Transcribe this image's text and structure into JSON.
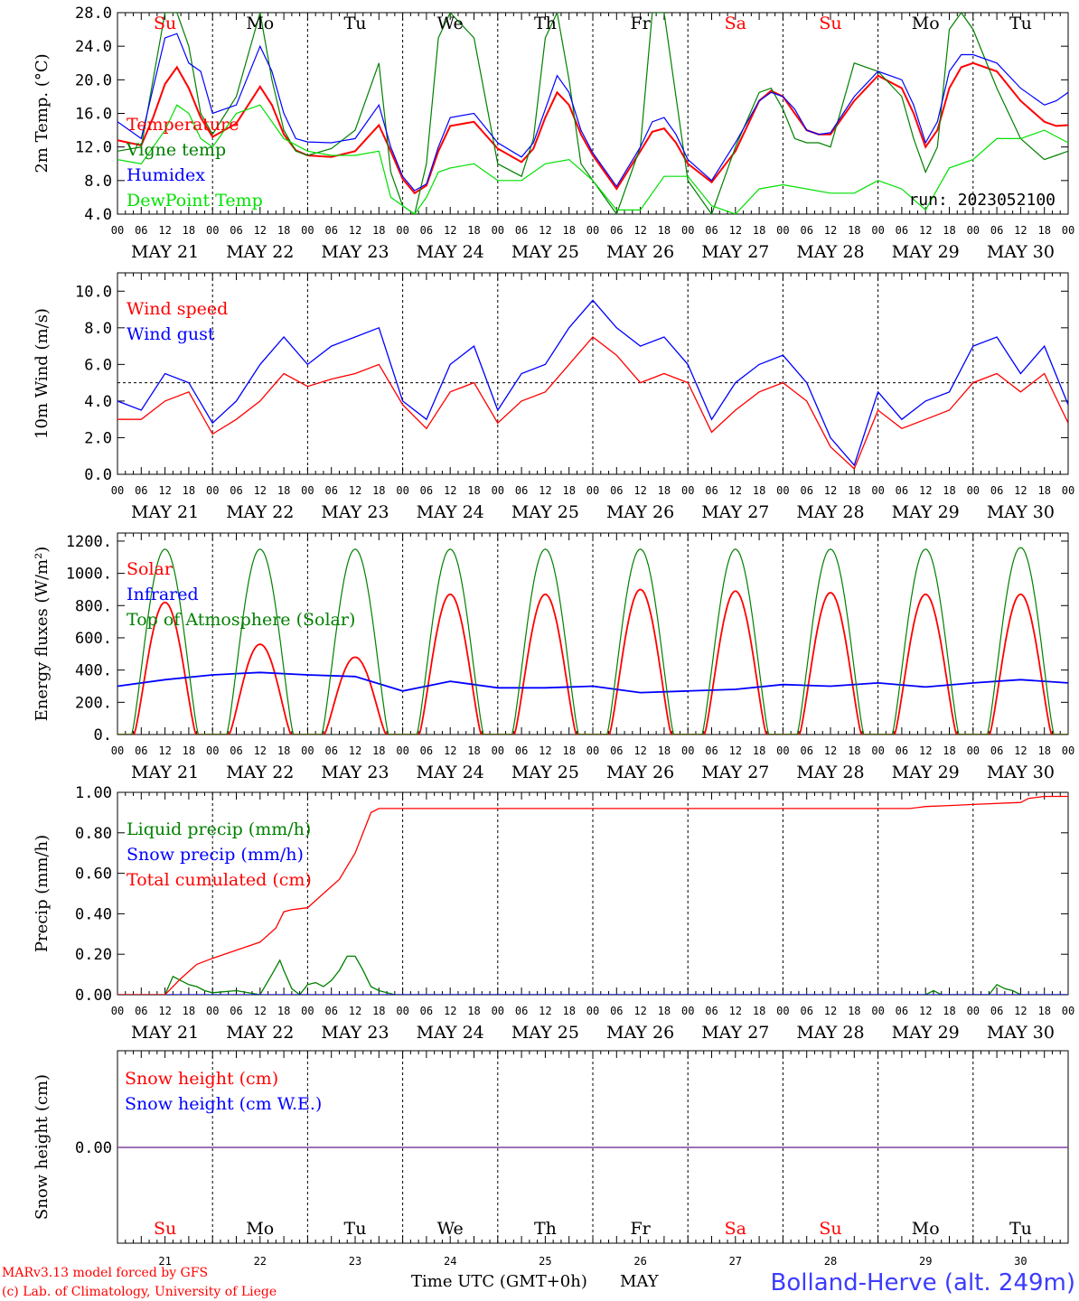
{
  "footer": {
    "credit_line1": "MARv3.13 model forced by GFS",
    "credit_line2": "(c) Lab. of Climatology, University of Liege",
    "time_axis_label": "Time UTC (GMT+0h)",
    "month_label": "MAY",
    "station": "Bolland-Herve (alt. 249m)"
  },
  "colors": {
    "red": "#ff0000",
    "green": "#008000",
    "blue": "#0000ff",
    "lightgreen": "#00e000",
    "purple": "#8040a0"
  },
  "days": [
    {
      "dow": "Su",
      "date": "MAY 21",
      "num": "21",
      "weekend": true
    },
    {
      "dow": "Mo",
      "date": "MAY 22",
      "num": "22",
      "weekend": false
    },
    {
      "dow": "Tu",
      "date": "MAY 23",
      "num": "23",
      "weekend": false
    },
    {
      "dow": "We",
      "date": "MAY 24",
      "num": "24",
      "weekend": false
    },
    {
      "dow": "Th",
      "date": "MAY 25",
      "num": "25",
      "weekend": false
    },
    {
      "dow": "Fr",
      "date": "MAY 26",
      "num": "26",
      "weekend": false
    },
    {
      "dow": "Sa",
      "date": "MAY 27",
      "num": "27",
      "weekend": true
    },
    {
      "dow": "Su",
      "date": "MAY 28",
      "num": "28",
      "weekend": true
    },
    {
      "dow": "Mo",
      "date": "MAY 29",
      "num": "29",
      "weekend": false
    },
    {
      "dow": "Tu",
      "date": "MAY 30",
      "num": "30",
      "weekend": false
    }
  ],
  "hour_ticks": [
    "00",
    "06",
    "12",
    "18"
  ],
  "chart_data": [
    {
      "id": "temp",
      "type": "line",
      "ylabel": "2m Temp. (°C)",
      "ylim": [
        4,
        28
      ],
      "yticks": [
        "4.0",
        "8.0",
        "12.0",
        "16.0",
        "20.0",
        "24.0",
        "28.0"
      ],
      "annotation": "run: 2023052100",
      "series": [
        {
          "name": "Temperature",
          "color": "red",
          "x": [
            0,
            6,
            9,
            12,
            15,
            18,
            21,
            24,
            30,
            36,
            39,
            42,
            45,
            48,
            54,
            60,
            66,
            69,
            72,
            75,
            78,
            81,
            84,
            90,
            96,
            102,
            105,
            108,
            111,
            114,
            117,
            120,
            126,
            132,
            135,
            138,
            141,
            144,
            150,
            156,
            162,
            165,
            168,
            171,
            174,
            177,
            180,
            186,
            192,
            198,
            201,
            204,
            207,
            210,
            213,
            216,
            222,
            228,
            234,
            237,
            240
          ],
          "y": [
            12.8,
            12.2,
            15.5,
            19.5,
            21.5,
            19.0,
            15.5,
            13.2,
            14.8,
            19.2,
            17.0,
            13.5,
            11.6,
            11.0,
            10.8,
            11.5,
            14.6,
            11.5,
            8.2,
            6.5,
            7.4,
            11.5,
            14.5,
            15.0,
            11.8,
            10.2,
            11.8,
            15.5,
            18.5,
            17.0,
            13.5,
            11.0,
            7.0,
            11.5,
            13.8,
            14.2,
            12.5,
            10.0,
            7.8,
            11.5,
            17.5,
            18.7,
            18.0,
            16.0,
            14.0,
            13.5,
            13.5,
            17.5,
            20.5,
            19.0,
            16.0,
            12.0,
            14.0,
            19.0,
            21.5,
            22.0,
            21.0,
            17.5,
            15.0,
            14.5,
            14.6
          ]
        },
        {
          "name": "Vigne temp",
          "color": "green",
          "x": [
            0,
            6,
            9,
            12,
            15,
            18,
            21,
            24,
            30,
            36,
            39,
            42,
            45,
            48,
            54,
            60,
            66,
            69,
            72,
            75,
            78,
            81,
            84,
            90,
            96,
            102,
            105,
            108,
            111,
            114,
            117,
            120,
            126,
            132,
            135,
            138,
            141,
            144,
            150,
            156,
            162,
            165,
            168,
            171,
            174,
            177,
            180,
            186,
            192,
            198,
            201,
            204,
            207,
            210,
            213,
            216,
            222,
            228,
            234,
            237,
            240
          ],
          "y": [
            11.5,
            12.0,
            20.0,
            28.0,
            28.0,
            24.0,
            16.0,
            13.5,
            18.0,
            28.0,
            20.0,
            14.0,
            11.5,
            11.0,
            11.8,
            14.0,
            22.0,
            9.0,
            5.0,
            4.0,
            10.0,
            25.0,
            28.0,
            25.0,
            10.0,
            8.5,
            13.0,
            25.0,
            28.0,
            20.0,
            10.0,
            8.0,
            4.0,
            12.0,
            28.0,
            28.0,
            18.0,
            8.0,
            4.0,
            12.0,
            18.5,
            19.0,
            16.5,
            13.0,
            12.5,
            12.5,
            12.0,
            22.0,
            21.0,
            18.0,
            13.0,
            9.0,
            12.0,
            26.0,
            28.0,
            26.0,
            19.0,
            13.0,
            10.5,
            11.0,
            11.5
          ]
        },
        {
          "name": "Humidex",
          "color": "blue",
          "x": [
            0,
            6,
            9,
            12,
            15,
            18,
            21,
            24,
            30,
            36,
            39,
            42,
            45,
            48,
            54,
            60,
            66,
            69,
            72,
            75,
            78,
            81,
            84,
            90,
            96,
            102,
            105,
            108,
            111,
            114,
            117,
            120,
            126,
            132,
            135,
            138,
            141,
            144,
            150,
            156,
            162,
            165,
            168,
            171,
            174,
            177,
            180,
            186,
            192,
            198,
            201,
            204,
            207,
            210,
            213,
            216,
            222,
            228,
            234,
            237,
            240
          ],
          "y": [
            15.0,
            13.0,
            19.0,
            25.0,
            25.5,
            22.0,
            21.0,
            16.0,
            17.0,
            24.0,
            21.0,
            16.0,
            13.0,
            12.6,
            12.5,
            13.0,
            17.0,
            12.0,
            8.5,
            6.8,
            7.6,
            12.0,
            15.5,
            16.0,
            12.5,
            10.8,
            12.5,
            16.5,
            20.5,
            18.5,
            14.0,
            11.3,
            7.3,
            12.0,
            15.0,
            15.5,
            13.5,
            10.5,
            8.0,
            12.5,
            17.5,
            18.5,
            18.0,
            16.5,
            14.0,
            13.5,
            13.7,
            18.0,
            21.0,
            20.0,
            17.0,
            12.5,
            15.0,
            21.0,
            23.0,
            23.0,
            22.0,
            19.0,
            17.0,
            17.5,
            18.5
          ]
        },
        {
          "name": "DewPoint Temp",
          "color": "lightgreen",
          "x": [
            0,
            6,
            12,
            15,
            18,
            21,
            24,
            30,
            36,
            42,
            48,
            54,
            60,
            66,
            69,
            72,
            75,
            78,
            81,
            84,
            90,
            96,
            102,
            108,
            114,
            120,
            126,
            132,
            138,
            144,
            150,
            156,
            162,
            168,
            174,
            180,
            186,
            192,
            198,
            204,
            210,
            216,
            222,
            228,
            234,
            240
          ],
          "y": [
            10.5,
            10.0,
            14.0,
            17.0,
            16.0,
            13.0,
            12.0,
            16.0,
            17.0,
            13.0,
            11.5,
            11.0,
            11.0,
            11.5,
            6.0,
            5.0,
            4.0,
            6.0,
            9.0,
            9.5,
            10.0,
            8.0,
            8.0,
            10.0,
            10.5,
            8.0,
            4.5,
            4.5,
            8.5,
            8.5,
            5.0,
            4.0,
            7.0,
            7.5,
            7.0,
            6.5,
            6.5,
            8.0,
            7.0,
            4.5,
            9.5,
            10.5,
            13.0,
            13.0,
            14.0,
            12.5
          ]
        }
      ]
    },
    {
      "id": "wind",
      "type": "line",
      "ylabel": "10m Wind (m/s)",
      "ylim": [
        0,
        11
      ],
      "yticks": [
        "0.0",
        "2.0",
        "4.0",
        "6.0",
        "8.0",
        "10.0"
      ],
      "reference_line": 5,
      "series": [
        {
          "name": "Wind speed",
          "color": "red",
          "x": [
            0,
            6,
            12,
            18,
            24,
            30,
            36,
            42,
            48,
            54,
            60,
            66,
            72,
            78,
            84,
            90,
            96,
            102,
            108,
            114,
            120,
            126,
            132,
            138,
            144,
            150,
            156,
            162,
            168,
            174,
            180,
            186,
            192,
            198,
            204,
            210,
            216,
            222,
            228,
            234,
            240
          ],
          "y": [
            3.0,
            3.0,
            4.0,
            4.5,
            2.2,
            3.0,
            4.0,
            5.5,
            4.8,
            5.2,
            5.5,
            6.0,
            3.8,
            2.5,
            4.5,
            5.0,
            2.8,
            4.0,
            4.5,
            6.0,
            7.5,
            6.5,
            5.0,
            5.5,
            5.0,
            2.3,
            3.5,
            4.5,
            5.0,
            4.0,
            1.5,
            0.3,
            3.5,
            2.5,
            3.0,
            3.5,
            5.0,
            5.5,
            4.5,
            5.5,
            2.8
          ]
        },
        {
          "name": "Wind gust",
          "color": "blue",
          "x": [
            0,
            6,
            12,
            18,
            24,
            30,
            36,
            42,
            48,
            54,
            60,
            66,
            72,
            78,
            84,
            90,
            96,
            102,
            108,
            114,
            120,
            126,
            132,
            138,
            144,
            150,
            156,
            162,
            168,
            174,
            180,
            186,
            192,
            198,
            204,
            210,
            216,
            222,
            228,
            234,
            240
          ],
          "y": [
            4.0,
            3.5,
            5.5,
            5.0,
            2.8,
            4.0,
            6.0,
            7.5,
            6.0,
            7.0,
            7.5,
            8.0,
            4.0,
            3.0,
            6.0,
            7.0,
            3.5,
            5.5,
            6.0,
            8.0,
            9.5,
            8.0,
            7.0,
            7.5,
            6.0,
            3.0,
            5.0,
            6.0,
            6.5,
            5.0,
            2.0,
            0.5,
            4.5,
            3.0,
            4.0,
            4.5,
            7.0,
            7.5,
            5.5,
            7.0,
            3.8
          ]
        }
      ]
    },
    {
      "id": "energy",
      "type": "line",
      "ylabel": "Energy fluxes (W/m²)",
      "ylim": [
        0,
        1250
      ],
      "yticks": [
        "0.",
        "200.",
        "400.",
        "600.",
        "800.",
        "1000.",
        "1200."
      ],
      "series": [
        {
          "name": "Solar",
          "color": "red",
          "daily_peak": [
            820,
            560,
            480,
            870,
            870,
            900,
            890,
            880,
            870,
            870
          ]
        },
        {
          "name": "Infrared",
          "color": "blue",
          "x": [
            0,
            12,
            24,
            36,
            48,
            60,
            72,
            84,
            96,
            108,
            120,
            132,
            144,
            156,
            168,
            180,
            192,
            204,
            216,
            228,
            240
          ],
          "y": [
            300,
            340,
            370,
            385,
            370,
            360,
            270,
            330,
            290,
            290,
            300,
            260,
            270,
            280,
            310,
            300,
            320,
            295,
            320,
            340,
            320
          ]
        },
        {
          "name": "Top of Atmosphere (Solar)",
          "color": "green",
          "daily_peak": [
            1150,
            1150,
            1150,
            1150,
            1150,
            1150,
            1150,
            1150,
            1150,
            1160
          ]
        }
      ]
    },
    {
      "id": "precip",
      "type": "line",
      "ylabel": "Precip (mm/h)",
      "ylim": [
        0,
        1
      ],
      "yticks": [
        "0.00",
        "0.20",
        "0.40",
        "0.60",
        "0.80",
        "1.00"
      ],
      "series": [
        {
          "name": "Liquid precip (mm/h)",
          "color": "green",
          "x": [
            0,
            12,
            14,
            16,
            18,
            20,
            22,
            24,
            30,
            36,
            39,
            41,
            42,
            44,
            46,
            48,
            50,
            52,
            54,
            56,
            58,
            60,
            62,
            64,
            66,
            68,
            70,
            72,
            120,
            204,
            206,
            208,
            220,
            222,
            224,
            226,
            228,
            240
          ],
          "y": [
            0,
            0,
            0.09,
            0.07,
            0.05,
            0.04,
            0.02,
            0.01,
            0.02,
            0,
            0.1,
            0.17,
            0.12,
            0.03,
            0,
            0.05,
            0.06,
            0.04,
            0.07,
            0.12,
            0.19,
            0.19,
            0.12,
            0.04,
            0.02,
            0.01,
            0,
            0,
            0,
            0,
            0.02,
            0,
            0,
            0.05,
            0.03,
            0.02,
            0,
            0
          ]
        },
        {
          "name": "Snow precip (mm/h)",
          "color": "blue",
          "x": [
            0,
            240
          ],
          "y": [
            0,
            0
          ]
        },
        {
          "name": "Total cumulated (cm)",
          "color": "red",
          "x": [
            0,
            12,
            16,
            20,
            24,
            30,
            36,
            40,
            42,
            44,
            48,
            52,
            56,
            60,
            64,
            66,
            68,
            72,
            100,
            120,
            140,
            160,
            180,
            200,
            204,
            210,
            216,
            228,
            230,
            234,
            240
          ],
          "y": [
            0,
            0,
            0.08,
            0.15,
            0.18,
            0.22,
            0.26,
            0.33,
            0.41,
            0.42,
            0.43,
            0.5,
            0.57,
            0.7,
            0.9,
            0.92,
            0.92,
            0.92,
            0.92,
            0.92,
            0.92,
            0.92,
            0.92,
            0.92,
            0.93,
            0.935,
            0.94,
            0.95,
            0.97,
            0.98,
            0.98
          ]
        }
      ]
    },
    {
      "id": "snow",
      "type": "line",
      "ylabel": "Snow height (cm)",
      "yticks": [
        "0.00"
      ],
      "series": [
        {
          "name": "Snow height (cm)",
          "color": "red",
          "x": [
            0,
            240
          ],
          "y": [
            0,
            0
          ]
        },
        {
          "name": "Snow height (cm W.E.)",
          "color": "blue",
          "x": [
            0,
            240
          ],
          "y": [
            0,
            0
          ]
        }
      ]
    }
  ]
}
